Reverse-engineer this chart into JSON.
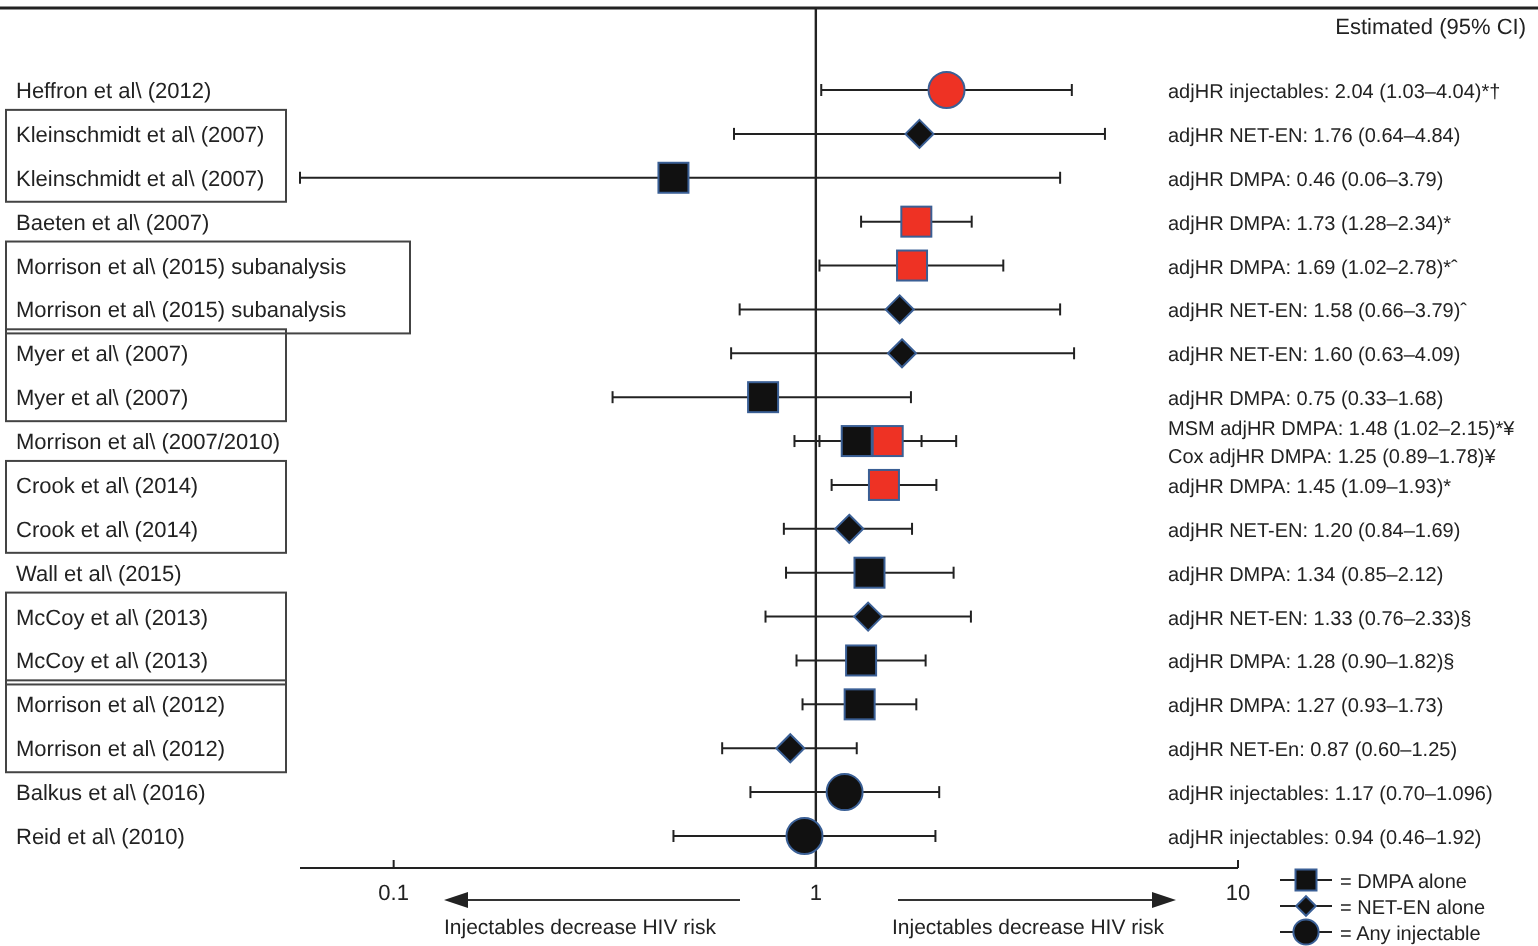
{
  "chart_data": {
    "type": "scatter",
    "orientation": "horizontal",
    "log": "x",
    "categories": [
      "Heffron et al\\ (2012)",
      "Kleinschmidt et al\\ (2007)",
      "Kleinschmidt et al\\ (2007)",
      "Baeten et al\\ (2007)",
      "Morrison et al\\ (2015) subanalysis",
      "Morrison et al\\ (2015) subanalysis",
      "Myer et al\\ (2007)",
      "Myer et al\\ (2007)",
      "Morrison et al\\ (2007/2010)",
      "Crook et al\\ (2014)",
      "Crook et al\\ (2014)",
      "Wall et al\\ (2015)",
      "McCoy et al\\ (2013)",
      "McCoy et al\\ (2013)",
      "Morrison et al\\ (2012)",
      "Morrison et al\\ (2012)",
      "Balkus et al\\ (2016)",
      "Reid et al\\ (2010)"
    ],
    "series": [
      {
        "marker": "square",
        "values": [
          null,
          null,
          null,
          null,
          null,
          null,
          null,
          null,
          1.48,
          null,
          null,
          null,
          null,
          null,
          null,
          null,
          null,
          null
        ],
        "colors": [
          null,
          null,
          null,
          null,
          null,
          null,
          null,
          null,
          "#ee3224",
          null,
          null,
          null,
          null,
          null,
          null,
          null,
          null,
          null
        ],
        "errors": [
          null,
          null,
          null,
          null,
          null,
          null,
          null,
          null,
          [
            1.02,
            2.15
          ],
          null,
          null,
          null,
          null,
          null,
          null,
          null,
          null,
          null
        ]
      },
      {
        "name": "= DMPA alone",
        "marker": "square",
        "color": "#111111",
        "values": [
          null,
          null,
          0.46,
          1.73,
          1.69,
          null,
          null,
          0.75,
          1.25,
          1.45,
          null,
          1.34,
          null,
          1.28,
          1.27,
          null,
          null,
          null
        ],
        "colors": [
          null,
          null,
          "#111111",
          "#ee3224",
          "#ee3224",
          null,
          null,
          "#111111",
          "#111111",
          "#ee3224",
          null,
          "#111111",
          null,
          "#111111",
          "#111111",
          null,
          null,
          null
        ],
        "errors": [
          null,
          null,
          [
            0.06,
            3.79
          ],
          [
            1.28,
            2.34
          ],
          [
            1.02,
            2.78
          ],
          null,
          null,
          [
            0.33,
            1.68
          ],
          [
            0.89,
            1.78
          ],
          [
            1.09,
            1.93
          ],
          null,
          [
            0.85,
            2.12
          ],
          null,
          [
            0.9,
            1.82
          ],
          [
            0.93,
            1.73
          ],
          null,
          null,
          null
        ]
      },
      {
        "name": "= NET-EN alone",
        "marker": "diamond",
        "color": "#111111",
        "values": [
          null,
          1.76,
          null,
          null,
          null,
          1.58,
          1.6,
          null,
          null,
          null,
          1.2,
          null,
          1.33,
          null,
          null,
          0.87,
          null,
          null
        ],
        "errors": [
          null,
          [
            0.64,
            4.84
          ],
          null,
          null,
          null,
          [
            0.66,
            3.79
          ],
          [
            0.63,
            4.09
          ],
          null,
          null,
          null,
          [
            0.84,
            1.69
          ],
          null,
          [
            0.76,
            2.33
          ],
          null,
          null,
          [
            0.6,
            1.25
          ],
          null,
          null
        ]
      },
      {
        "name": "= Any injectable",
        "marker": "circle",
        "color": "#111111",
        "values": [
          2.04,
          null,
          null,
          null,
          null,
          null,
          null,
          null,
          null,
          null,
          null,
          null,
          null,
          null,
          null,
          null,
          1.17,
          0.94
        ],
        "colors": [
          "#ee3224",
          null,
          null,
          null,
          null,
          null,
          null,
          null,
          null,
          null,
          null,
          null,
          null,
          null,
          null,
          null,
          "#111111",
          "#111111"
        ],
        "errors": [
          [
            1.03,
            4.04
          ],
          null,
          null,
          null,
          null,
          null,
          null,
          null,
          null,
          null,
          null,
          null,
          null,
          null,
          null,
          null,
          [
            0.7,
            1.96
          ],
          [
            0.46,
            1.92
          ]
        ]
      }
    ],
    "xlim": [
      0.06,
      10
    ],
    "xticks": [
      0.1,
      1,
      10
    ],
    "ref_lines": [
      {
        "axis": "x",
        "value": 1
      }
    ],
    "legend": "bottom right",
    "annotations": [
      "Estimated (95% CI)",
      "adjHR injectables: 2.04 (1.03–4.04)*†",
      "adjHR NET-EN: 1.76 (0.64–4.84)",
      "adjHR DMPA: 0.46 (0.06–3.79)",
      "adjHR DMPA: 1.73 (1.28–2.34)*",
      "adjHR DMPA: 1.69 (1.02–2.78)*ˆ",
      "adjHR NET-EN: 1.58 (0.66–3.79)ˆ",
      "adjHR NET-EN: 1.60 (0.63–4.09)",
      "adjHR DMPA: 0.75 (0.33–1.68)",
      "MSM adjHR DMPA: 1.48 (1.02–2.15)*¥",
      "Cox adjHR DMPA: 1.25 (0.89–1.78)¥",
      "adjHR DMPA: 1.45 (1.09–1.93)*",
      "adjHR NET-EN: 1.20 (0.84–1.69)",
      "adjHR DMPA: 1.34 (0.85–2.12)",
      "adjHR NET-EN: 1.33 (0.76–2.33)§",
      "adjHR DMPA: 1.28 (0.90–1.82)§",
      "adjHR DMPA: 1.27 (0.93–1.73)",
      "adjHR NET-En: 0.87 (0.60–1.25)",
      "adjHR injectables: 1.17 (0.70–1.096)",
      "adjHR injectables: 0.94 (0.46–1.92)",
      "Injectables decrease HIV risk",
      "Injectables decrease HIV risk"
    ]
  }
}
